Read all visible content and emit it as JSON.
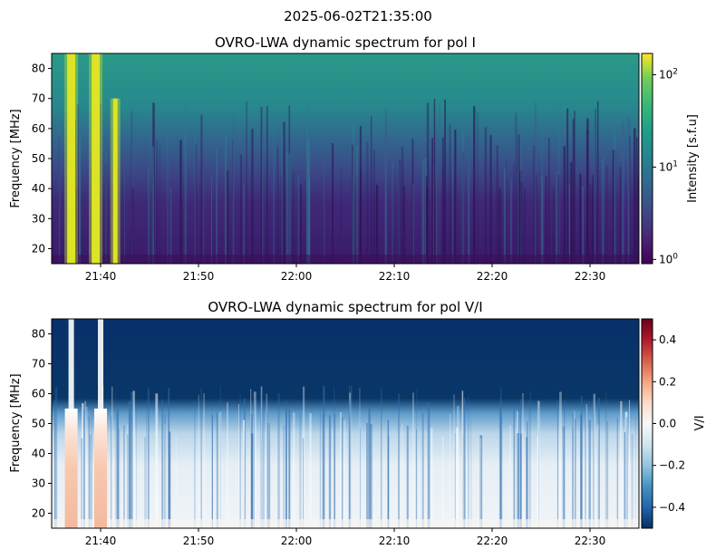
{
  "suptitle": "2025-06-02T21:35:00",
  "chart_data": [
    {
      "type": "heatmap",
      "title": "OVRO-LWA dynamic spectrum for pol I",
      "xlabel": "",
      "ylabel": "Frequency [MHz]",
      "x_ticks": [
        "21:40",
        "21:50",
        "22:00",
        "22:10",
        "22:20",
        "22:30"
      ],
      "x_range": [
        "21:35",
        "22:35"
      ],
      "y_ticks": [
        20,
        30,
        40,
        50,
        60,
        70,
        80
      ],
      "ylim": [
        15,
        85
      ],
      "colormap": "viridis",
      "log_scale": true,
      "colorbar": {
        "label": "Intensity [s.f.u]",
        "range": [
          0.9,
          170
        ],
        "ticks": [
          {
            "base": "10",
            "exp": "0"
          },
          {
            "base": "10",
            "exp": "1"
          },
          {
            "base": "10",
            "exp": "2"
          }
        ]
      },
      "features": [
        {
          "kind": "bright burst",
          "time": "21:37",
          "freq_range": [
            15,
            85
          ]
        },
        {
          "kind": "bright burst",
          "time": "21:39:30",
          "freq_range": [
            15,
            85
          ]
        },
        {
          "kind": "bright burst",
          "time": "21:41:30",
          "freq_range": [
            15,
            70
          ]
        }
      ]
    },
    {
      "type": "heatmap",
      "title": "OVRO-LWA dynamic spectrum for pol V/I",
      "xlabel": "",
      "ylabel": "Frequency [MHz]",
      "x_ticks": [
        "21:40",
        "21:50",
        "22:00",
        "22:10",
        "22:20",
        "22:30"
      ],
      "x_range": [
        "21:35",
        "22:35"
      ],
      "y_ticks": [
        20,
        30,
        40,
        50,
        60,
        70,
        80
      ],
      "ylim": [
        15,
        85
      ],
      "colormap": "RdBu_r",
      "colorbar": {
        "label": "V/I",
        "range": [
          -0.5,
          0.5
        ],
        "ticks": [
          "0.4",
          "0.2",
          "0.0",
          "−0.2",
          "−0.4"
        ],
        "tick_values": [
          0.4,
          0.2,
          0.0,
          -0.2,
          -0.4
        ]
      },
      "features": [
        {
          "kind": "positive V/I burst",
          "time": "21:37",
          "freq_range": [
            15,
            85
          ]
        },
        {
          "kind": "positive V/I burst",
          "time": "21:40",
          "freq_range": [
            15,
            85
          ]
        }
      ]
    }
  ]
}
